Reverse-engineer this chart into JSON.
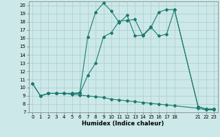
{
  "xlabel": "Humidex (Indice chaleur)",
  "xlim": [
    -0.5,
    23.5
  ],
  "ylim": [
    7,
    20.5
  ],
  "yticks": [
    7,
    8,
    9,
    10,
    11,
    12,
    13,
    14,
    15,
    16,
    17,
    18,
    19,
    20
  ],
  "xticks": [
    0,
    1,
    2,
    3,
    4,
    5,
    6,
    7,
    8,
    9,
    10,
    11,
    12,
    13,
    14,
    15,
    16,
    17,
    18,
    21,
    22,
    23
  ],
  "bg_color": "#cce8e8",
  "grid_color": "#aacccc",
  "line_color": "#1a7a6e",
  "lines": [
    {
      "x": [
        0,
        1,
        2,
        3,
        4,
        5,
        6,
        7,
        8,
        9,
        10,
        11,
        12,
        13,
        14,
        15,
        16,
        17,
        18,
        21,
        22,
        23
      ],
      "y": [
        10.5,
        9.0,
        9.3,
        9.3,
        9.3,
        9.2,
        9.1,
        9.0,
        8.9,
        8.8,
        8.6,
        8.5,
        8.4,
        8.3,
        8.2,
        8.1,
        8.0,
        7.9,
        7.8,
        7.5,
        7.3,
        7.3
      ]
    },
    {
      "x": [
        0,
        1,
        2,
        3,
        4,
        5,
        6,
        7,
        8,
        9,
        10,
        11,
        12,
        13,
        14,
        15,
        16,
        17,
        18,
        21,
        22,
        23
      ],
      "y": [
        10.5,
        9.0,
        9.3,
        9.3,
        9.3,
        9.3,
        9.3,
        11.5,
        13.0,
        16.2,
        16.7,
        18.1,
        18.2,
        18.3,
        16.3,
        17.3,
        19.2,
        19.5,
        19.5,
        7.7,
        7.4,
        7.4
      ]
    },
    {
      "x": [
        1,
        2,
        3,
        4,
        5,
        6,
        7,
        8,
        9,
        10,
        11,
        12,
        13,
        14,
        15,
        16,
        17,
        18,
        21,
        22,
        23
      ],
      "y": [
        9.0,
        9.3,
        9.3,
        9.3,
        9.3,
        9.4,
        16.2,
        19.2,
        20.3,
        19.3,
        17.9,
        18.8,
        16.3,
        16.4,
        17.4,
        16.3,
        16.5,
        19.5,
        7.7,
        7.4,
        7.4
      ]
    }
  ]
}
